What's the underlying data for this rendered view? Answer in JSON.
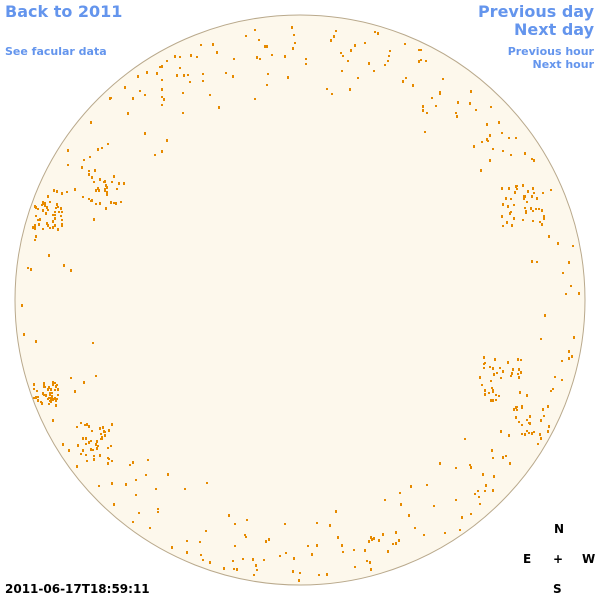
{
  "nav": {
    "back": "Back to 2011",
    "facular": "See facular data",
    "previous_day": "Previous day",
    "next_day": "Next day",
    "previous_hour": "Previous hour",
    "next_hour": "Next hour"
  },
  "compass": {
    "north": "N",
    "east": "E",
    "center": "+",
    "west": "W",
    "south": "S"
  },
  "timestamp": "2011-06-17T18:59:11"
}
